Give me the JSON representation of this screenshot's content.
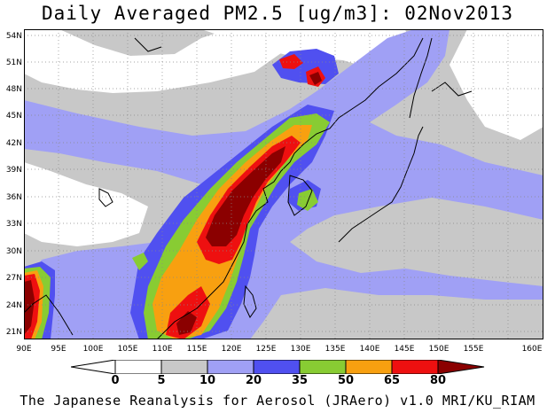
{
  "title": "Daily Averaged PM2.5 [ug/m3]: 02Nov2013",
  "footer": "The Japanese Reanalysis for Aerosol (JRAero) v1.0 MRI/KU_RIAM",
  "lat_labels": [
    "54N",
    "51N",
    "48N",
    "45N",
    "42N",
    "39N",
    "36N",
    "33N",
    "30N",
    "27N",
    "24N",
    "21N"
  ],
  "lon_labels": [
    "90E",
    "95E",
    "100E",
    "105E",
    "110E",
    "115E",
    "120E",
    "125E",
    "130E",
    "135E",
    "140E",
    "145E",
    "150E",
    "155E",
    "160E"
  ],
  "colorbar": {
    "labels": [
      "0",
      "5",
      "10",
      "20",
      "35",
      "50",
      "65",
      "80"
    ],
    "colors": [
      "#ffffff",
      "#c8c8c8",
      "#a0a0f5",
      "#5050f0",
      "#88cc33",
      "#f8a010",
      "#ee1010",
      "#8b0000"
    ]
  }
}
